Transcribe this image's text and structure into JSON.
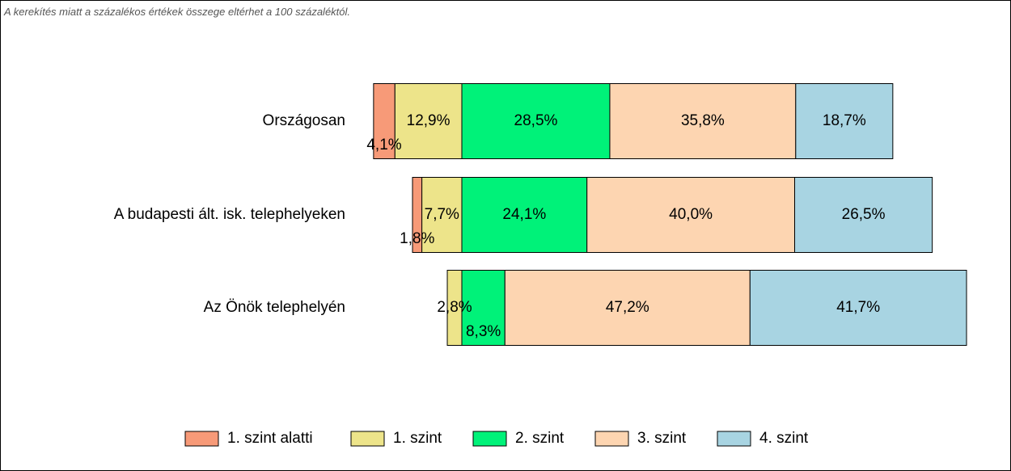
{
  "chart_data": {
    "type": "bar",
    "orientation": "horizontal",
    "stacking": "diverging",
    "note": "A kerekítés miatt a  százalékos értékek összege eltérhet a 100 százaléktól.",
    "categories": [
      "Országosan",
      "A budapesti ált. isk. telephelyeken",
      "Az Önök telephelyén"
    ],
    "series": [
      {
        "name": "1. szint alatti",
        "color": "#f79a78",
        "values": [
          4.1,
          1.8,
          null
        ],
        "value_labels": [
          "4,1%",
          "1,8%",
          null
        ]
      },
      {
        "name": "1. szint",
        "color": "#ede48a",
        "values": [
          12.9,
          7.7,
          2.8
        ],
        "value_labels": [
          "12,9%",
          "7,7%",
          "2,8%"
        ]
      },
      {
        "name": "2. szint",
        "color": "#00f279",
        "values": [
          28.5,
          24.1,
          8.3
        ],
        "value_labels": [
          "28,5%",
          "24,1%",
          "8,3%"
        ]
      },
      {
        "name": "3. szint",
        "color": "#fdd5b1",
        "values": [
          35.8,
          40.0,
          47.2
        ],
        "value_labels": [
          "35,8%",
          "40,0%",
          "47,2%"
        ]
      },
      {
        "name": "4. szint",
        "color": "#a8d4e2",
        "values": [
          18.7,
          26.5,
          41.7
        ],
        "value_labels": [
          "18,7%",
          "26,5%",
          "41,7%"
        ]
      }
    ],
    "legend": "bottom"
  }
}
